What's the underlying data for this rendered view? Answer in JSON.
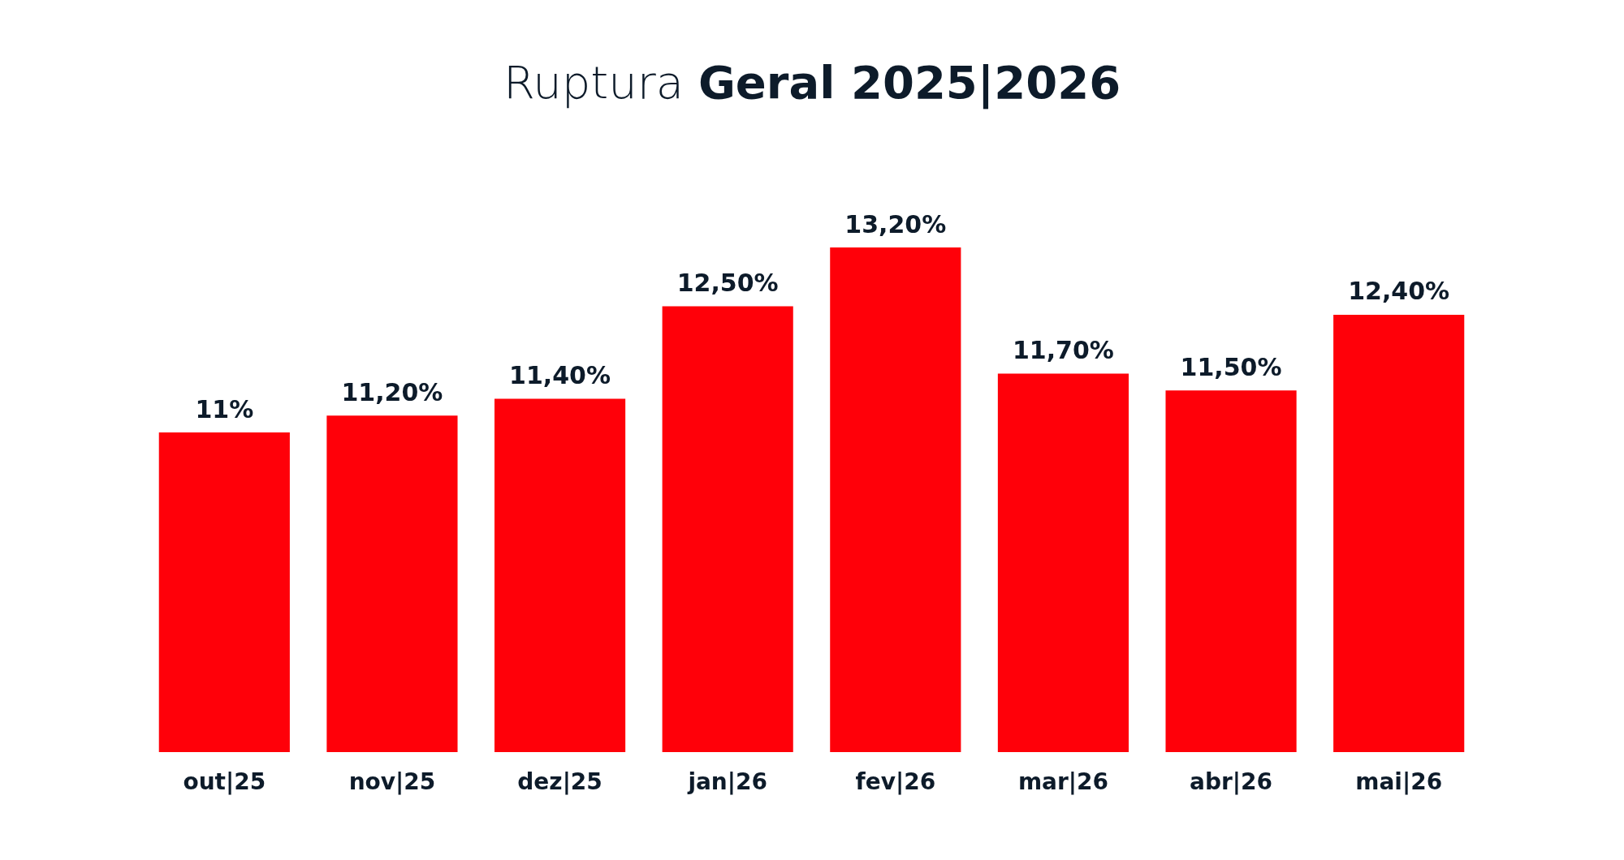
{
  "chart_data": {
    "type": "bar",
    "title": "Ruptura Geral 2025|2026",
    "categories": [
      "out|25",
      "nov|25",
      "dez|25",
      "jan|26",
      "fev|26",
      "mar|26",
      "abr|26",
      "mai|26"
    ],
    "values": [
      11,
      11.2,
      11.4,
      12.5,
      13.2,
      11.7,
      11.5,
      12.4
    ],
    "value_labels": [
      "11%",
      "11,20%",
      "11,40%",
      "12,50%",
      "13,20%",
      "11,70%",
      "11,50%",
      "12,40%"
    ],
    "color": "#ff0009",
    "ylim": [
      7.2,
      13.2
    ]
  }
}
